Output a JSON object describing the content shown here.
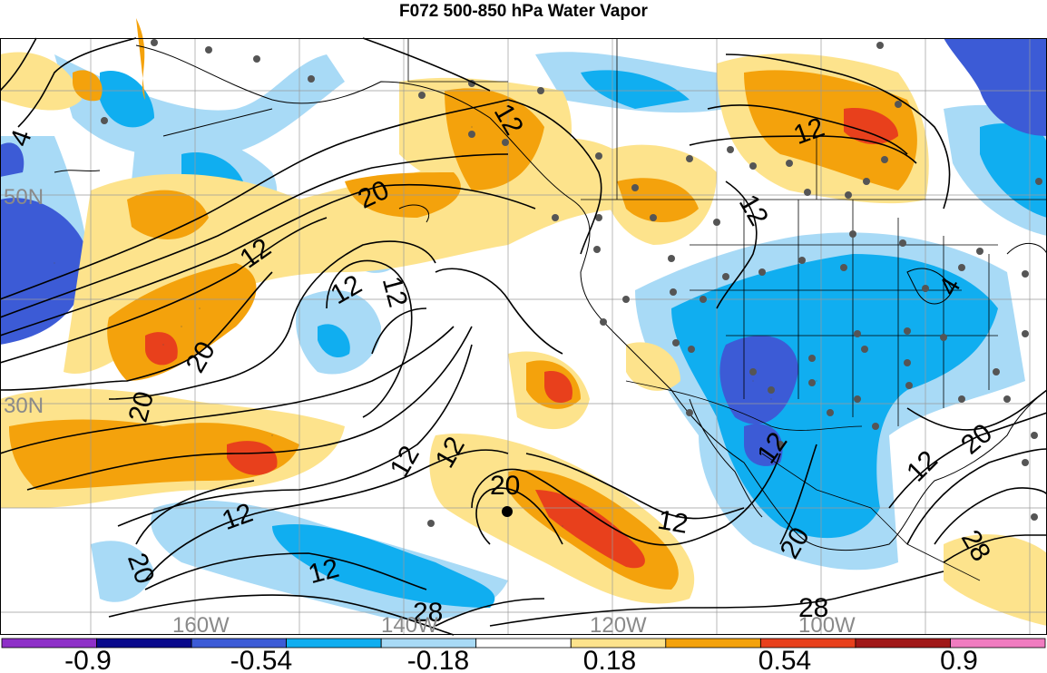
{
  "title": "F072 500-850 hPa Water Vapor",
  "latitude_labels": [
    "50N",
    "30N"
  ],
  "longitude_labels": [
    "160W",
    "140W",
    "120W",
    "100W"
  ],
  "contour_labels": [
    "4",
    "12",
    "12",
    "20",
    "12",
    "12",
    "20",
    "20",
    "12",
    "12",
    "12",
    "20",
    "12",
    "12",
    "20",
    "28",
    "12",
    "12",
    "20",
    "20",
    "28",
    "12",
    "4"
  ],
  "colorbar": {
    "colors": [
      "#8e30c8",
      "#0a0a8c",
      "#3c5bd6",
      "#10aef0",
      "#a8daf6",
      "#ffffff",
      "#fde38c",
      "#f4a20c",
      "#e8401c",
      "#a01818",
      "#f07cc0"
    ],
    "tick_labels": [
      "-0.9",
      "-0.54",
      "-0.18",
      "0.18",
      "0.54",
      "0.9"
    ]
  },
  "colors": {
    "very_negative": "#3c5bd6",
    "negative": "#10aef0",
    "slightly_negative": "#a8daf6",
    "slightly_positive": "#fde38c",
    "positive": "#f4a20c",
    "very_positive": "#e8401c",
    "station_dot": "#555555"
  }
}
